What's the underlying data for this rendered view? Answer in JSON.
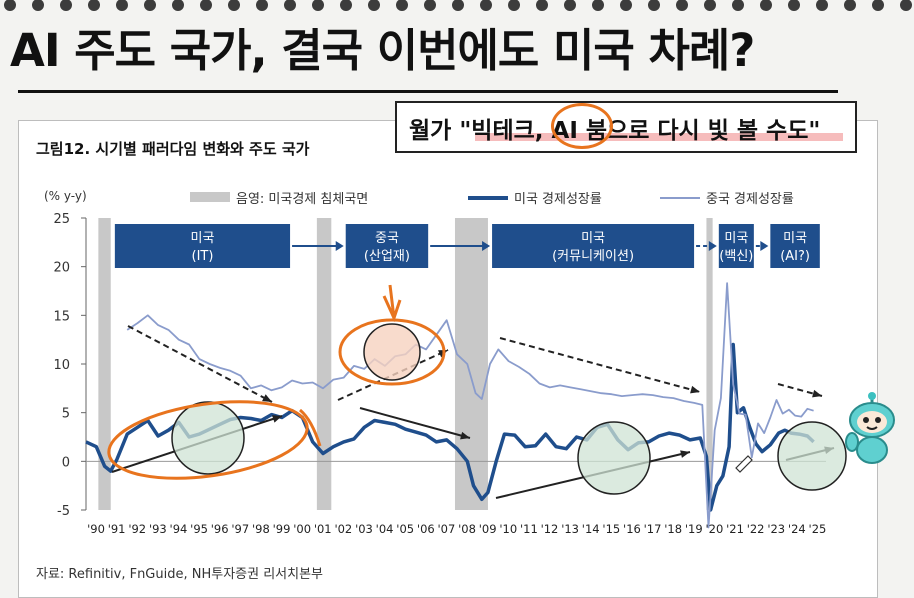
{
  "headline": "AI 주도 국가, 결국 이번에도 미국 차례?",
  "overlay": {
    "text": "월가 \"빅테크, AI 붐으로 다시 빛 볼 수도\""
  },
  "chart_title": "그림12. 시기별 패러다임 변화와 주도 국가",
  "source": "자료: Refinitiv, FnGuide, NH투자증권 리서치본부",
  "colors": {
    "us_line": "#1f4e8c",
    "china_line": "#8a9ccc",
    "recession": "#c8c8c8",
    "box": "#1f4e8c",
    "annotation": "#e8741e",
    "circle_fill": "#cfe3d4"
  },
  "chart_data": {
    "type": "line",
    "ylabel": "(% y-y)",
    "ylim": [
      -5,
      25
    ],
    "yticks": [
      25,
      20,
      15,
      10,
      5,
      0,
      -5
    ],
    "xticks": [
      "'90",
      "'91",
      "'92",
      "'93",
      "'94",
      "'95",
      "'96",
      "'97",
      "'98",
      "'99",
      "'00",
      "'01",
      "'02",
      "'03",
      "'04",
      "'05",
      "'06",
      "'07",
      "'08",
      "'09",
      "'10",
      "'11",
      "'12",
      "'13",
      "'14",
      "'15",
      "'16",
      "'17",
      "'18",
      "'19",
      "'20",
      "'21",
      "'22",
      "'23",
      "'24",
      "'25"
    ],
    "legend": [
      {
        "label": "음영: 미국경제 침체국면",
        "kind": "shade"
      },
      {
        "label": "미국 경제성장률",
        "kind": "us"
      },
      {
        "label": "중국 경제성장률",
        "kind": "china"
      }
    ],
    "recessions": [
      [
        1990.6,
        1991.2
      ],
      [
        2001.2,
        2001.9
      ],
      [
        2007.9,
        2009.5
      ],
      [
        2020.1,
        2020.4
      ]
    ],
    "phases": [
      {
        "country": "미국",
        "theme": "(IT)",
        "start": 1991.4,
        "end": 1999.9
      },
      {
        "country": "중국",
        "theme": "(산업재)",
        "start": 2002.6,
        "end": 2006.6
      },
      {
        "country": "미국",
        "theme": "(커뮤니케이션)",
        "start": 2009.7,
        "end": 2019.5
      },
      {
        "country": "미국",
        "theme": "(백신)",
        "start": 2020.7,
        "end": 2022.4
      },
      {
        "country": "미국",
        "theme": "(AI?)",
        "start": 2023.2,
        "end": 2025.6
      }
    ],
    "series": [
      {
        "name": "미국 경제성장률",
        "key": "us",
        "points": [
          [
            1990.0,
            2.0
          ],
          [
            1990.5,
            1.5
          ],
          [
            1990.9,
            -0.5
          ],
          [
            1991.2,
            -1.0
          ],
          [
            1991.5,
            0.2
          ],
          [
            1992.0,
            2.8
          ],
          [
            1992.5,
            3.5
          ],
          [
            1993.0,
            4.2
          ],
          [
            1993.5,
            2.6
          ],
          [
            1994.0,
            3.2
          ],
          [
            1994.5,
            4.0
          ],
          [
            1995.0,
            2.5
          ],
          [
            1995.5,
            2.8
          ],
          [
            1996.0,
            3.3
          ],
          [
            1996.5,
            3.8
          ],
          [
            1997.0,
            4.3
          ],
          [
            1997.5,
            4.5
          ],
          [
            1998.0,
            4.4
          ],
          [
            1998.5,
            4.2
          ],
          [
            1999.0,
            4.8
          ],
          [
            1999.5,
            4.5
          ],
          [
            2000.0,
            5.2
          ],
          [
            2000.5,
            4.5
          ],
          [
            2001.0,
            2.0
          ],
          [
            2001.5,
            0.8
          ],
          [
            2002.0,
            1.5
          ],
          [
            2002.5,
            2.0
          ],
          [
            2003.0,
            2.3
          ],
          [
            2003.5,
            3.5
          ],
          [
            2004.0,
            4.2
          ],
          [
            2004.5,
            4.0
          ],
          [
            2005.0,
            3.8
          ],
          [
            2005.5,
            3.3
          ],
          [
            2006.0,
            3.0
          ],
          [
            2006.5,
            2.7
          ],
          [
            2007.0,
            2.0
          ],
          [
            2007.5,
            2.2
          ],
          [
            2008.0,
            1.3
          ],
          [
            2008.5,
            0.0
          ],
          [
            2008.8,
            -2.5
          ],
          [
            2009.2,
            -3.9
          ],
          [
            2009.5,
            -3.2
          ],
          [
            2009.9,
            0.0
          ],
          [
            2010.3,
            2.8
          ],
          [
            2010.8,
            2.7
          ],
          [
            2011.3,
            1.5
          ],
          [
            2011.8,
            1.6
          ],
          [
            2012.3,
            2.8
          ],
          [
            2012.8,
            1.5
          ],
          [
            2013.3,
            1.3
          ],
          [
            2013.8,
            2.5
          ],
          [
            2014.3,
            2.2
          ],
          [
            2014.8,
            3.5
          ],
          [
            2015.3,
            3.8
          ],
          [
            2015.8,
            2.2
          ],
          [
            2016.3,
            1.2
          ],
          [
            2016.8,
            1.9
          ],
          [
            2017.3,
            2.0
          ],
          [
            2017.8,
            2.6
          ],
          [
            2018.3,
            2.9
          ],
          [
            2018.8,
            2.7
          ],
          [
            2019.3,
            2.2
          ],
          [
            2019.8,
            2.4
          ],
          [
            2020.1,
            0.5
          ],
          [
            2020.3,
            -5.0
          ],
          [
            2020.6,
            -2.5
          ],
          [
            2020.9,
            -1.5
          ],
          [
            2021.2,
            1.5
          ],
          [
            2021.4,
            12.0
          ],
          [
            2021.6,
            5.0
          ],
          [
            2021.9,
            5.5
          ],
          [
            2022.2,
            3.5
          ],
          [
            2022.5,
            1.8
          ],
          [
            2022.8,
            1.0
          ],
          [
            2023.2,
            1.7
          ],
          [
            2023.6,
            2.9
          ],
          [
            2023.9,
            3.2
          ],
          [
            2024.2,
            2.9
          ],
          [
            2024.6,
            2.8
          ],
          [
            2025.0,
            2.6
          ],
          [
            2025.3,
            2.0
          ]
        ]
      },
      {
        "name": "중국 경제성장률",
        "key": "china",
        "points": [
          [
            1992.0,
            13.5
          ],
          [
            1992.5,
            14.2
          ],
          [
            1993.0,
            15.0
          ],
          [
            1993.5,
            14.0
          ],
          [
            1994.0,
            13.5
          ],
          [
            1994.5,
            12.5
          ],
          [
            1995.0,
            12.0
          ],
          [
            1995.5,
            10.5
          ],
          [
            1996.0,
            10.0
          ],
          [
            1996.5,
            9.6
          ],
          [
            1997.0,
            9.3
          ],
          [
            1997.5,
            8.8
          ],
          [
            1998.0,
            7.5
          ],
          [
            1998.5,
            7.8
          ],
          [
            1999.0,
            7.3
          ],
          [
            1999.5,
            7.6
          ],
          [
            2000.0,
            8.3
          ],
          [
            2000.5,
            8.0
          ],
          [
            2001.0,
            8.1
          ],
          [
            2001.5,
            7.5
          ],
          [
            2002.0,
            8.4
          ],
          [
            2002.5,
            8.6
          ],
          [
            2003.0,
            9.8
          ],
          [
            2003.5,
            9.5
          ],
          [
            2004.0,
            10.5
          ],
          [
            2004.5,
            9.8
          ],
          [
            2005.0,
            10.8
          ],
          [
            2005.5,
            11.0
          ],
          [
            2006.0,
            12.0
          ],
          [
            2006.5,
            11.5
          ],
          [
            2007.0,
            13.0
          ],
          [
            2007.5,
            14.5
          ],
          [
            2008.0,
            11.0
          ],
          [
            2008.5,
            10.0
          ],
          [
            2008.9,
            7.0
          ],
          [
            2009.2,
            6.4
          ],
          [
            2009.6,
            10.0
          ],
          [
            2010.0,
            11.5
          ],
          [
            2010.5,
            10.3
          ],
          [
            2011.0,
            9.7
          ],
          [
            2011.5,
            9.0
          ],
          [
            2012.0,
            8.0
          ],
          [
            2012.5,
            7.6
          ],
          [
            2013.0,
            7.8
          ],
          [
            2013.5,
            7.6
          ],
          [
            2014.0,
            7.4
          ],
          [
            2014.5,
            7.2
          ],
          [
            2015.0,
            7.0
          ],
          [
            2015.5,
            6.9
          ],
          [
            2016.0,
            6.7
          ],
          [
            2016.5,
            6.8
          ],
          [
            2017.0,
            6.9
          ],
          [
            2017.5,
            6.8
          ],
          [
            2018.0,
            6.6
          ],
          [
            2018.5,
            6.5
          ],
          [
            2019.0,
            6.2
          ],
          [
            2019.5,
            6.0
          ],
          [
            2019.9,
            5.8
          ],
          [
            2020.2,
            -6.8
          ],
          [
            2020.5,
            3.2
          ],
          [
            2020.8,
            6.5
          ],
          [
            2021.1,
            18.3
          ],
          [
            2021.4,
            7.9
          ],
          [
            2021.7,
            4.9
          ],
          [
            2022.0,
            4.8
          ],
          [
            2022.3,
            0.4
          ],
          [
            2022.6,
            3.9
          ],
          [
            2022.9,
            2.9
          ],
          [
            2023.2,
            4.5
          ],
          [
            2023.5,
            6.3
          ],
          [
            2023.8,
            4.9
          ],
          [
            2024.1,
            5.3
          ],
          [
            2024.4,
            4.7
          ],
          [
            2024.7,
            4.6
          ],
          [
            2025.0,
            5.4
          ],
          [
            2025.3,
            5.2
          ]
        ]
      }
    ]
  }
}
